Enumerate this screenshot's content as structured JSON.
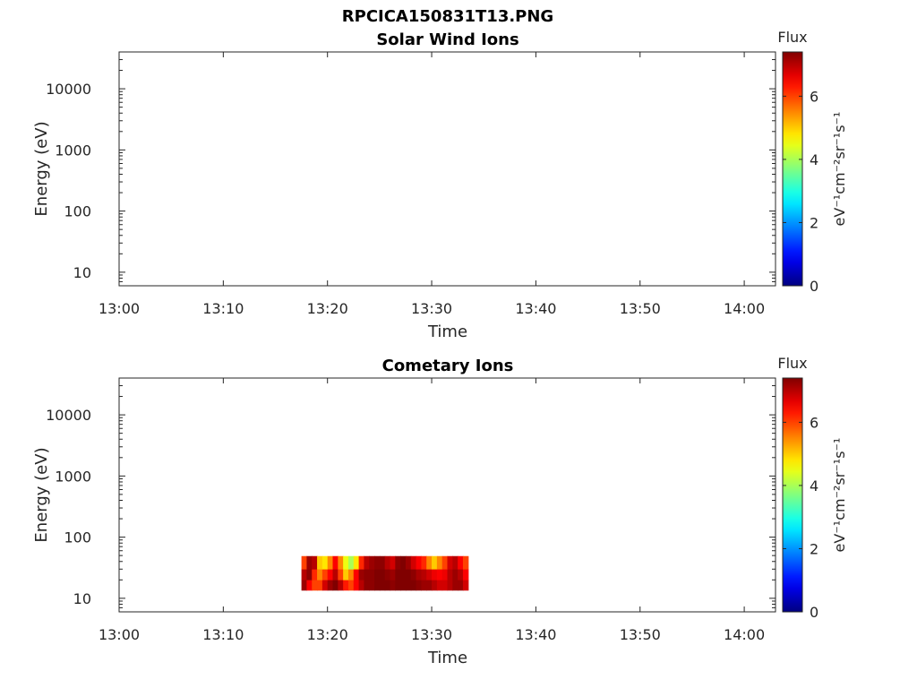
{
  "figure_title": "RPCICA150831T13.PNG",
  "chart_data": [
    {
      "type": "heatmap",
      "title": "Solar Wind Ions",
      "xlabel": "Time",
      "ylabel": "Energy (eV)",
      "x_ticks": [
        "13:00",
        "13:10",
        "13:20",
        "13:30",
        "13:40",
        "13:50",
        "14:00"
      ],
      "y_ticks": [
        "10",
        "100",
        "1000",
        "10000"
      ],
      "y_scale": "log",
      "ylim": [
        6,
        40000
      ],
      "xlim": [
        "13:00",
        "14:03"
      ],
      "colorbar": {
        "label": "Flux",
        "units": "eV⁻¹cm⁻²sr⁻¹s⁻¹",
        "ticks": [
          "0",
          "2",
          "4",
          "6"
        ],
        "range": [
          0,
          7.4
        ],
        "colormap": "jet"
      },
      "cells": []
    },
    {
      "type": "heatmap",
      "title": "Cometary Ions",
      "xlabel": "Time",
      "ylabel": "Energy (eV)",
      "x_ticks": [
        "13:00",
        "13:10",
        "13:20",
        "13:30",
        "13:40",
        "13:50",
        "14:00"
      ],
      "y_ticks": [
        "10",
        "100",
        "1000",
        "10000"
      ],
      "y_scale": "log",
      "ylim": [
        6,
        40000
      ],
      "xlim": [
        "13:00",
        "14:03"
      ],
      "colorbar": {
        "label": "Flux",
        "units": "eV⁻¹cm⁻²sr⁻¹s⁻¹",
        "ticks": [
          "0",
          "2",
          "4",
          "6"
        ],
        "range": [
          0,
          7.4
        ],
        "colormap": "jet"
      },
      "time_range": [
        "13:17.5",
        "13:33.5"
      ],
      "energy_bands": [
        13.5,
        20,
        30,
        49
      ],
      "cells": [
        [
          7.2,
          6.5,
          6.0,
          6.0,
          6.8,
          7.2,
          7.4,
          7.0,
          6.3,
          6.0,
          6.5,
          7.0,
          7.3,
          7.3,
          7.4,
          7.4,
          7.4,
          7.3,
          7.4,
          7.4,
          7.4,
          7.4,
          7.3,
          7.2,
          7.2,
          7.0,
          6.8,
          6.8,
          7.0,
          7.2,
          7.2,
          6.8
        ],
        [
          7.0,
          7.3,
          6.2,
          5.5,
          6.0,
          6.5,
          7.0,
          6.0,
          5.0,
          5.5,
          6.5,
          7.2,
          7.3,
          7.3,
          7.4,
          7.4,
          7.3,
          7.2,
          7.4,
          7.4,
          7.4,
          7.3,
          7.1,
          7.0,
          6.8,
          6.6,
          6.5,
          6.6,
          7.0,
          7.2,
          7.0,
          6.5
        ],
        [
          6.0,
          7.2,
          7.0,
          5.0,
          4.8,
          5.5,
          6.5,
          5.5,
          4.5,
          4.0,
          4.8,
          6.2,
          7.0,
          7.2,
          7.3,
          7.3,
          7.0,
          6.8,
          7.3,
          7.4,
          7.2,
          6.8,
          6.5,
          6.2,
          5.5,
          5.0,
          5.5,
          6.0,
          6.8,
          7.0,
          6.5,
          6.0
        ],
        [
          4.2,
          6.8,
          6.5,
          3.5,
          3.0,
          3.5,
          5.5,
          4.5,
          3.5,
          2.5,
          2.5,
          3.0,
          3.0,
          4.5,
          6.5,
          7.0,
          6.2,
          5.0,
          6.8,
          7.2,
          6.8,
          5.5,
          4.5,
          4.5,
          4.0,
          2.5,
          3.0,
          3.0,
          5.0,
          6.5,
          5.5,
          4.5
        ]
      ]
    }
  ]
}
